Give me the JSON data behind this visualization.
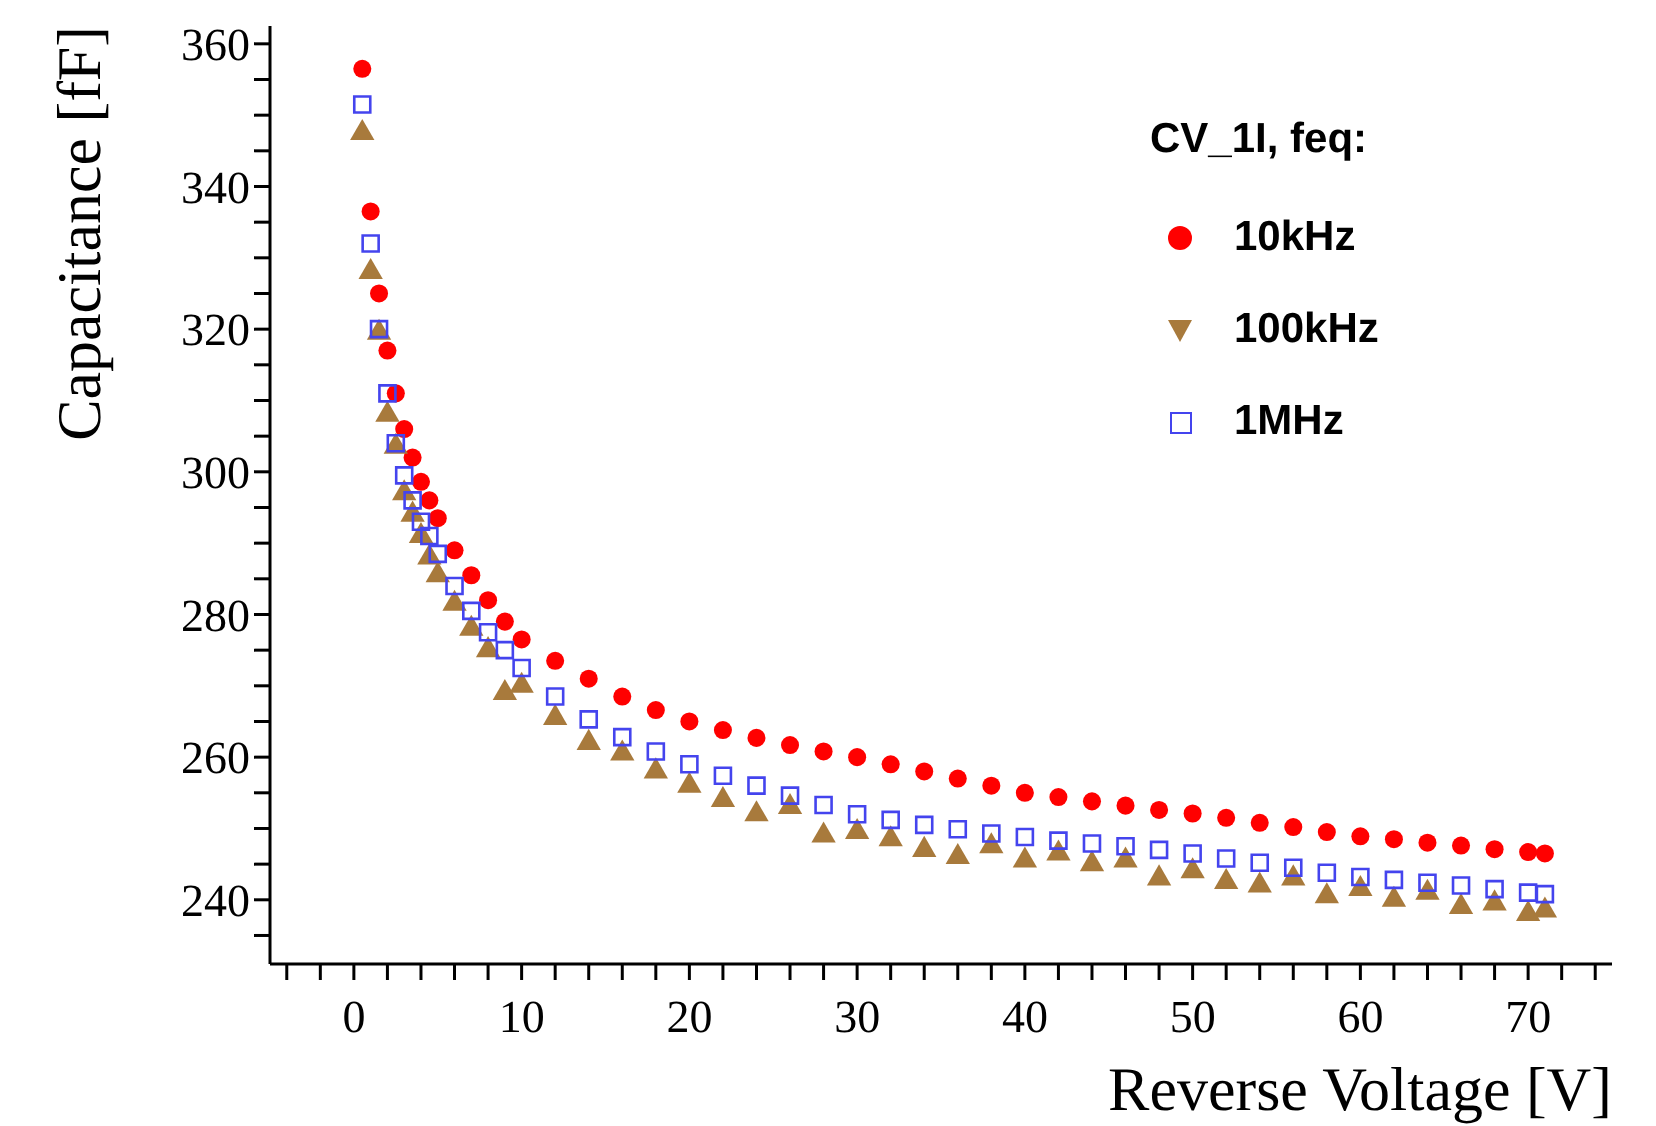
{
  "chart_data": {
    "type": "scatter",
    "xlabel": "Reverse Voltage [V]",
    "ylabel": "Capacitance [fF]",
    "legend_title": "CV_1I, feq:",
    "legend": "top right",
    "grid": false,
    "xlim": [
      -5,
      75
    ],
    "ylim": [
      231,
      362.5
    ],
    "xticks": [
      {
        "value": -4,
        "label": null
      },
      {
        "value": -2,
        "label": null
      },
      0,
      {
        "value": 2,
        "label": null
      },
      {
        "value": 4,
        "label": null
      },
      {
        "value": 6,
        "label": null
      },
      {
        "value": 8,
        "label": null
      },
      10,
      {
        "value": 12,
        "label": null
      },
      {
        "value": 14,
        "label": null
      },
      {
        "value": 16,
        "label": null
      },
      {
        "value": 18,
        "label": null
      },
      20,
      {
        "value": 22,
        "label": null
      },
      {
        "value": 24,
        "label": null
      },
      {
        "value": 26,
        "label": null
      },
      {
        "value": 28,
        "label": null
      },
      30,
      {
        "value": 32,
        "label": null
      },
      {
        "value": 34,
        "label": null
      },
      {
        "value": 36,
        "label": null
      },
      {
        "value": 38,
        "label": null
      },
      40,
      {
        "value": 42,
        "label": null
      },
      {
        "value": 44,
        "label": null
      },
      {
        "value": 46,
        "label": null
      },
      {
        "value": 48,
        "label": null
      },
      50,
      {
        "value": 52,
        "label": null
      },
      {
        "value": 54,
        "label": null
      },
      {
        "value": 56,
        "label": null
      },
      {
        "value": 58,
        "label": null
      },
      60,
      {
        "value": 62,
        "label": null
      },
      {
        "value": 64,
        "label": null
      },
      {
        "value": 66,
        "label": null
      },
      {
        "value": 68,
        "label": null
      },
      70,
      {
        "value": 72,
        "label": null
      },
      {
        "value": 74,
        "label": null
      }
    ],
    "yticks": [
      {
        "value": 235,
        "label": null
      },
      240,
      {
        "value": 245,
        "label": null
      },
      {
        "value": 250,
        "label": null
      },
      {
        "value": 255,
        "label": null
      },
      260,
      {
        "value": 265,
        "label": null
      },
      {
        "value": 270,
        "label": null
      },
      {
        "value": 275,
        "label": null
      },
      280,
      {
        "value": 285,
        "label": null
      },
      {
        "value": 290,
        "label": null
      },
      {
        "value": 295,
        "label": null
      },
      300,
      {
        "value": 305,
        "label": null
      },
      {
        "value": 310,
        "label": null
      },
      {
        "value": 315,
        "label": null
      },
      320,
      {
        "value": 325,
        "label": null
      },
      {
        "value": 330,
        "label": null
      },
      {
        "value": 335,
        "label": null
      },
      340,
      {
        "value": 345,
        "label": null
      },
      {
        "value": 350,
        "label": null
      },
      {
        "value": 355,
        "label": null
      },
      360
    ],
    "x": [
      0.5,
      1,
      1.5,
      2,
      2.5,
      3,
      3.5,
      4,
      4.5,
      5,
      6,
      7,
      8,
      9,
      10,
      12,
      14,
      16,
      18,
      20,
      22,
      24,
      26,
      28,
      30,
      32,
      34,
      36,
      38,
      40,
      42,
      44,
      46,
      48,
      50,
      52,
      54,
      56,
      58,
      60,
      62,
      64,
      66,
      68,
      70,
      71
    ],
    "series": [
      {
        "name": "10kHz",
        "color": "#ff0000",
        "marker": "circle",
        "values": [
          356.5,
          336.5,
          325,
          317,
          311,
          306,
          302,
          298.6,
          296,
          293.5,
          289,
          285.5,
          282,
          279,
          276.5,
          273.5,
          271,
          268.5,
          266.6,
          265,
          263.8,
          262.7,
          261.7,
          260.8,
          260,
          259,
          258,
          257,
          256,
          255,
          254.4,
          253.8,
          253.2,
          252.6,
          252.1,
          251.5,
          250.8,
          250.2,
          249.5,
          248.9,
          248.5,
          248,
          247.6,
          247.1,
          246.7,
          246.5
        ]
      },
      {
        "name": "100kHz",
        "color": "#a87a3c",
        "marker": "triangle",
        "values": [
          347.5,
          328,
          319.5,
          308,
          303.5,
          297,
          294,
          291,
          288,
          285.5,
          281.5,
          278,
          275,
          269,
          270,
          265.5,
          262,
          260.5,
          258,
          256,
          254,
          252,
          253,
          249,
          249.5,
          248.5,
          247,
          246,
          247.5,
          245.5,
          246.5,
          245,
          245.5,
          243,
          244,
          242.5,
          242,
          243,
          240.5,
          241.5,
          240,
          241,
          239,
          239.5,
          238,
          238.5
        ]
      },
      {
        "name": "1MHz",
        "color": "#4444ee",
        "marker": "square",
        "values": [
          351.5,
          332,
          320,
          311,
          304,
          299.5,
          296,
          293,
          291,
          288.5,
          284,
          280.5,
          277.5,
          275,
          272.5,
          268.5,
          265.3,
          262.8,
          260.8,
          259,
          257.4,
          256,
          254.6,
          253.3,
          252,
          251.2,
          250.5,
          249.9,
          249.3,
          248.8,
          248.3,
          247.9,
          247.5,
          247,
          246.5,
          245.8,
          245.2,
          244.5,
          243.8,
          243.2,
          242.8,
          242.4,
          242,
          241.5,
          241,
          240.8
        ]
      }
    ]
  }
}
